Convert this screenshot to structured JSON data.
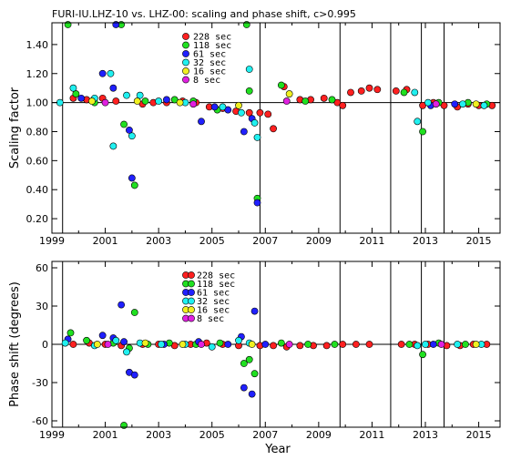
{
  "figure": {
    "title": "FURI-IU.LHZ-10 vs. LHZ-00: scaling and phase shift, c>0.995",
    "xlabel": "Year"
  },
  "legend": [
    {
      "label": "228 sec",
      "color": "#ff2020"
    },
    {
      "label": "118 sec",
      "color": "#20e020"
    },
    {
      "label": "61 sec",
      "color": "#2020ff"
    },
    {
      "label": "32 sec",
      "color": "#20f0f0"
    },
    {
      "label": "16 sec",
      "color": "#f0f020"
    },
    {
      "label": "8 sec",
      "color": "#e020e0"
    }
  ],
  "chart_data": [
    {
      "type": "scatter",
      "ylabel": "Scaling factor",
      "xlim": [
        1999,
        2015.8
      ],
      "ylim": [
        0.1,
        1.55
      ],
      "xticks": [
        1999,
        2001,
        2003,
        2005,
        2007,
        2009,
        2011,
        2013,
        2015
      ],
      "yticks": [
        0.2,
        0.4,
        0.6,
        0.8,
        1.0,
        1.2,
        1.4
      ],
      "ytick_labels": [
        "0.20",
        "0.40",
        "0.60",
        "0.80",
        "1.00",
        "1.20",
        "1.40"
      ],
      "reference_line": 1.0,
      "vlines": [
        1999.4,
        2006.8,
        2009.8,
        2011.7,
        2012.85,
        2013.7
      ],
      "grid": false,
      "series": [
        {
          "name": "228 sec",
          "color": "#ff2020",
          "points": [
            [
              1999.8,
              1.03
            ],
            [
              2000.3,
              1.02
            ],
            [
              2000.9,
              1.03
            ],
            [
              2001.4,
              1.01
            ],
            [
              2002.4,
              0.99
            ],
            [
              2002.8,
              1.0
            ],
            [
              2003.3,
              1.0
            ],
            [
              2003.9,
              1.01
            ],
            [
              2004.4,
              1.0
            ],
            [
              2004.9,
              0.97
            ],
            [
              2005.4,
              0.96
            ],
            [
              2005.9,
              0.94
            ],
            [
              2006.4,
              0.93
            ],
            [
              2006.8,
              0.93
            ],
            [
              2007.1,
              0.92
            ],
            [
              2007.3,
              0.82
            ],
            [
              2007.7,
              1.11
            ],
            [
              2008.3,
              1.02
            ],
            [
              2008.7,
              1.02
            ],
            [
              2009.2,
              1.03
            ],
            [
              2009.7,
              1.0
            ],
            [
              2009.9,
              0.98
            ],
            [
              2010.2,
              1.07
            ],
            [
              2010.6,
              1.08
            ],
            [
              2010.9,
              1.1
            ],
            [
              2011.2,
              1.09
            ],
            [
              2011.9,
              1.08
            ],
            [
              2012.3,
              1.09
            ],
            [
              2012.9,
              0.98
            ],
            [
              2013.3,
              1.0
            ],
            [
              2013.7,
              0.98
            ],
            [
              2014.2,
              0.97
            ],
            [
              2014.6,
              0.99
            ],
            [
              2015.0,
              0.98
            ],
            [
              2015.5,
              0.98
            ]
          ]
        },
        {
          "name": "118 sec",
          "color": "#20e020",
          "points": [
            [
              1999.6,
              1.55
            ],
            [
              1999.9,
              1.06
            ],
            [
              2000.6,
              1.0
            ],
            [
              2001.6,
              1.55
            ],
            [
              2001.7,
              0.85
            ],
            [
              2002.1,
              0.43
            ],
            [
              2002.5,
              1.01
            ],
            [
              2003.6,
              1.02
            ],
            [
              2004.3,
              1.01
            ],
            [
              2005.2,
              0.95
            ],
            [
              2006.3,
              1.55
            ],
            [
              2006.4,
              1.08
            ],
            [
              2006.7,
              0.34
            ],
            [
              2007.6,
              1.12
            ],
            [
              2008.5,
              1.01
            ],
            [
              2009.5,
              1.02
            ],
            [
              2012.2,
              1.07
            ],
            [
              2012.9,
              0.8
            ],
            [
              2013.5,
              1.0
            ],
            [
              2014.6,
              1.0
            ],
            [
              2015.3,
              0.99
            ]
          ]
        },
        {
          "name": "61 sec",
          "color": "#2020ff",
          "points": [
            [
              2000.1,
              1.03
            ],
            [
              2000.9,
              1.2
            ],
            [
              2001.3,
              1.1
            ],
            [
              2001.4,
              1.55
            ],
            [
              2001.9,
              0.81
            ],
            [
              2002.0,
              0.48
            ],
            [
              2003.3,
              1.02
            ],
            [
              2004.6,
              0.87
            ],
            [
              2005.1,
              0.97
            ],
            [
              2005.6,
              0.95
            ],
            [
              2006.2,
              0.8
            ],
            [
              2006.5,
              0.89
            ],
            [
              2006.7,
              0.31
            ],
            [
              2013.2,
              0.98
            ],
            [
              2014.1,
              0.99
            ]
          ]
        },
        {
          "name": "32 sec",
          "color": "#20f0f0",
          "points": [
            [
              1999.3,
              1.0
            ],
            [
              1999.8,
              1.1
            ],
            [
              2000.6,
              1.03
            ],
            [
              2001.2,
              1.2
            ],
            [
              2001.3,
              0.7
            ],
            [
              2001.8,
              1.05
            ],
            [
              2002.0,
              0.77
            ],
            [
              2002.3,
              1.05
            ],
            [
              2003.0,
              1.01
            ],
            [
              2004.0,
              1.0
            ],
            [
              2005.4,
              0.97
            ],
            [
              2006.1,
              0.93
            ],
            [
              2006.4,
              1.23
            ],
            [
              2006.6,
              0.86
            ],
            [
              2006.7,
              0.76
            ],
            [
              2012.6,
              1.07
            ],
            [
              2012.7,
              0.87
            ],
            [
              2013.1,
              1.0
            ],
            [
              2014.4,
              0.99
            ],
            [
              2015.2,
              0.98
            ]
          ]
        },
        {
          "name": "16 sec",
          "color": "#f0f020",
          "points": [
            [
              2000.5,
              1.01
            ],
            [
              2002.2,
              1.01
            ],
            [
              2003.8,
              1.0
            ],
            [
              2006.0,
              0.98
            ],
            [
              2007.9,
              1.06
            ],
            [
              2014.9,
              0.99
            ]
          ]
        },
        {
          "name": "8 sec",
          "color": "#e020e0",
          "points": [
            [
              2001.0,
              1.0
            ],
            [
              2004.3,
              0.99
            ],
            [
              2007.8,
              1.01
            ],
            [
              2013.4,
              0.99
            ]
          ]
        }
      ]
    },
    {
      "type": "scatter",
      "ylabel": "Phase shift (degrees)",
      "xlim": [
        1999,
        2015.8
      ],
      "ylim": [
        -65,
        65
      ],
      "xticks": [
        1999,
        2001,
        2003,
        2005,
        2007,
        2009,
        2011,
        2013,
        2015
      ],
      "yticks": [
        -60,
        -30,
        0,
        30,
        60
      ],
      "ytick_labels": [
        "-60",
        "-30",
        "0",
        "30",
        "60"
      ],
      "reference_line": 0,
      "vlines": [
        1999.4,
        2006.8,
        2009.8,
        2011.7,
        2012.85,
        2013.7
      ],
      "grid": false,
      "series": [
        {
          "name": "228 sec",
          "color": "#ff2020",
          "points": [
            [
              1999.8,
              0
            ],
            [
              2000.4,
              1
            ],
            [
              2001.0,
              0
            ],
            [
              2001.6,
              -1
            ],
            [
              2002.4,
              0
            ],
            [
              2003.0,
              0
            ],
            [
              2003.6,
              -1
            ],
            [
              2004.2,
              0
            ],
            [
              2004.8,
              1
            ],
            [
              2005.4,
              0
            ],
            [
              2006.0,
              -1
            ],
            [
              2006.8,
              -1
            ],
            [
              2007.3,
              -1
            ],
            [
              2007.8,
              -2
            ],
            [
              2008.3,
              -1
            ],
            [
              2008.8,
              -1
            ],
            [
              2009.3,
              -1
            ],
            [
              2009.9,
              0
            ],
            [
              2010.4,
              0
            ],
            [
              2010.9,
              0
            ],
            [
              2012.1,
              0
            ],
            [
              2012.6,
              0
            ],
            [
              2013.1,
              0
            ],
            [
              2013.8,
              -1
            ],
            [
              2014.3,
              -1
            ],
            [
              2014.8,
              0
            ],
            [
              2015.3,
              0
            ]
          ]
        },
        {
          "name": "118 sec",
          "color": "#20e020",
          "points": [
            [
              1999.7,
              9
            ],
            [
              2000.3,
              3
            ],
            [
              2001.3,
              1
            ],
            [
              2001.7,
              -66
            ],
            [
              2001.9,
              -3
            ],
            [
              2002.1,
              25
            ],
            [
              2002.6,
              0
            ],
            [
              2003.4,
              1
            ],
            [
              2004.4,
              0
            ],
            [
              2005.3,
              1
            ],
            [
              2006.2,
              -15
            ],
            [
              2006.4,
              -12
            ],
            [
              2006.6,
              -23
            ],
            [
              2007.6,
              1
            ],
            [
              2008.6,
              0
            ],
            [
              2009.6,
              0
            ],
            [
              2012.4,
              0
            ],
            [
              2012.9,
              -8
            ],
            [
              2013.5,
              1
            ],
            [
              2014.5,
              0
            ]
          ]
        },
        {
          "name": "61 sec",
          "color": "#2020ff",
          "points": [
            [
              1999.6,
              4
            ],
            [
              2000.9,
              7
            ],
            [
              2001.3,
              5
            ],
            [
              2001.6,
              31
            ],
            [
              2001.7,
              2
            ],
            [
              2001.9,
              -22
            ],
            [
              2002.1,
              -24
            ],
            [
              2003.2,
              0
            ],
            [
              2004.5,
              2
            ],
            [
              2005.6,
              0
            ],
            [
              2006.1,
              6
            ],
            [
              2006.2,
              -34
            ],
            [
              2006.5,
              -39
            ],
            [
              2006.6,
              26
            ],
            [
              2007.0,
              0
            ],
            [
              2013.3,
              0
            ]
          ]
        },
        {
          "name": "32 sec",
          "color": "#20f0f0",
          "points": [
            [
              1999.5,
              1
            ],
            [
              2000.6,
              -1
            ],
            [
              2001.4,
              3
            ],
            [
              2001.8,
              -6
            ],
            [
              2002.3,
              1
            ],
            [
              2003.1,
              0
            ],
            [
              2004.0,
              0
            ],
            [
              2005.0,
              -2
            ],
            [
              2006.0,
              3
            ],
            [
              2006.4,
              1
            ],
            [
              2012.7,
              -1
            ],
            [
              2013.0,
              0
            ],
            [
              2014.2,
              0
            ],
            [
              2015.1,
              0
            ]
          ]
        },
        {
          "name": "16 sec",
          "color": "#f0f020",
          "points": [
            [
              2000.7,
              0
            ],
            [
              2002.5,
              1
            ],
            [
              2003.9,
              0
            ],
            [
              2006.5,
              0
            ],
            [
              2014.9,
              0
            ]
          ]
        },
        {
          "name": "8 sec",
          "color": "#e020e0",
          "points": [
            [
              2001.1,
              0
            ],
            [
              2004.6,
              0
            ],
            [
              2007.9,
              0
            ],
            [
              2013.6,
              0
            ]
          ]
        }
      ]
    }
  ]
}
